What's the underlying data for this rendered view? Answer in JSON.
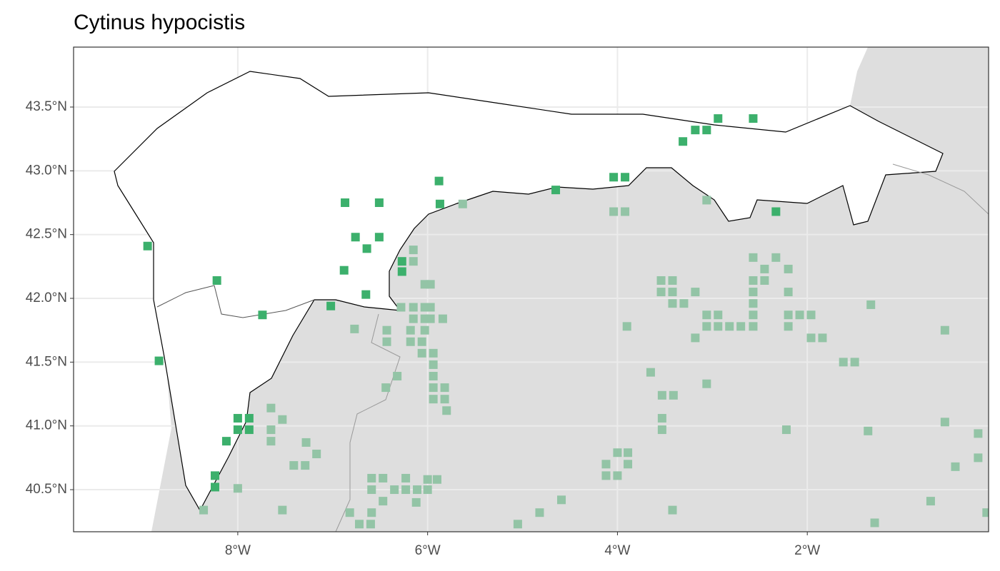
{
  "chart_data": {
    "type": "scatter",
    "title": "Cytinus hypocistis",
    "xlim": [
      -9.73,
      -0.09
    ],
    "ylim": [
      40.17,
      43.97
    ],
    "xticks": [
      {
        "value": -8,
        "label": "8°W"
      },
      {
        "value": -6,
        "label": "6°W"
      },
      {
        "value": -4,
        "label": "4°W"
      },
      {
        "value": -2,
        "label": "2°W"
      }
    ],
    "yticks": [
      {
        "value": 40.5,
        "label": "40.5°N"
      },
      {
        "value": 41.0,
        "label": "41.0°N"
      },
      {
        "value": 41.5,
        "label": "41.5°N"
      },
      {
        "value": 42.0,
        "label": "42.0°N"
      },
      {
        "value": 42.5,
        "label": "42.5°N"
      },
      {
        "value": 43.0,
        "label": "43.0°N"
      },
      {
        "value": 43.5,
        "label": "43.5°N"
      }
    ],
    "grid": true,
    "series": [
      {
        "color": "#3cb06c",
        "x": [
          -8.95,
          -8.22,
          -8.83,
          -7.74,
          -8.0,
          -7.88,
          -8.0,
          -7.88,
          -8.12,
          -8.24,
          -8.24,
          -7.02,
          -6.88,
          -6.87,
          -6.76,
          -6.64,
          -6.51,
          -6.51,
          -6.65,
          -6.27,
          -6.27,
          -5.88,
          -5.87,
          -4.65,
          -4.04,
          -3.92,
          -3.31,
          -3.18,
          -3.06,
          -2.94,
          -2.57,
          -2.33
        ],
        "values": [
          42.41,
          42.14,
          41.51,
          41.87,
          41.06,
          41.06,
          40.97,
          40.97,
          40.88,
          40.61,
          40.52,
          41.94,
          42.22,
          42.75,
          42.48,
          42.39,
          42.48,
          42.75,
          42.03,
          42.29,
          42.21,
          42.92,
          42.74,
          42.85,
          42.95,
          42.95,
          43.23,
          43.32,
          43.32,
          43.41,
          43.41,
          42.68
        ]
      },
      {
        "color": "#93c4a6",
        "x": [
          -5.63,
          -4.04,
          -3.92,
          -3.06,
          -6.15,
          -6.15,
          -6.03,
          -5.97,
          -6.28,
          -6.15,
          -6.03,
          -5.97,
          -6.15,
          -6.03,
          -5.97,
          -5.84,
          -6.18,
          -6.03,
          -6.18,
          -6.06,
          -6.06,
          -5.94,
          -5.94,
          -5.94,
          -5.94,
          -5.94,
          -5.82,
          -5.82,
          -5.8,
          -6.43,
          -6.43,
          -6.77,
          -6.32,
          -6.44,
          -7.65,
          -7.53,
          -7.65,
          -7.65,
          -7.28,
          -7.17,
          -7.41,
          -7.29,
          -8.0,
          -8.36,
          -7.53,
          -6.82,
          -6.72,
          -6.6,
          -6.59,
          -6.59,
          -6.47,
          -6.59,
          -6.47,
          -6.35,
          -6.23,
          -6.23,
          -6.11,
          -6.0,
          -6.0,
          -5.9,
          -6.12,
          -5.05,
          -4.82,
          -4.59,
          -4.12,
          -4.12,
          -4.0,
          -4.0,
          -3.89,
          -3.89,
          -3.65,
          -3.54,
          -3.42,
          -3.54,
          -3.42,
          -3.42,
          -3.3,
          -3.18,
          -3.9,
          -3.18,
          -3.06,
          -2.94,
          -3.06,
          -2.94,
          -2.82,
          -2.7,
          -2.57,
          -2.57,
          -2.33,
          -2.45,
          -2.57,
          -2.45,
          -2.57,
          -2.57,
          -2.57,
          -2.2,
          -2.2,
          -2.2,
          -2.08,
          -1.96,
          -2.2,
          -1.96,
          -1.84,
          -1.62,
          -1.5,
          -1.33,
          -3.53,
          -3.41,
          -3.53,
          -3.53,
          -3.06,
          -2.22,
          -1.36,
          -0.55,
          -0.55,
          -0.2,
          -0.44,
          -0.2,
          -0.7,
          -1.29,
          -0.11,
          -3.42
        ],
        "values": [
          42.74,
          42.68,
          42.68,
          42.77,
          42.38,
          42.29,
          42.11,
          42.11,
          41.93,
          41.93,
          41.93,
          41.93,
          41.84,
          41.84,
          41.84,
          41.84,
          41.75,
          41.75,
          41.66,
          41.66,
          41.57,
          41.57,
          41.48,
          41.39,
          41.3,
          41.21,
          41.3,
          41.21,
          41.12,
          41.75,
          41.66,
          41.76,
          41.39,
          41.3,
          41.14,
          41.05,
          40.97,
          40.88,
          40.87,
          40.78,
          40.69,
          40.69,
          40.51,
          40.34,
          40.34,
          40.32,
          40.23,
          40.23,
          40.32,
          40.59,
          40.59,
          40.5,
          40.41,
          40.5,
          40.59,
          40.5,
          40.5,
          40.5,
          40.58,
          40.58,
          40.4,
          40.23,
          40.32,
          40.42,
          40.7,
          40.61,
          40.79,
          40.61,
          40.79,
          40.7,
          41.42,
          42.14,
          42.14,
          42.05,
          42.05,
          41.96,
          41.96,
          42.05,
          41.78,
          41.69,
          41.87,
          41.87,
          41.78,
          41.78,
          41.78,
          41.78,
          41.78,
          42.32,
          42.32,
          42.23,
          42.14,
          42.14,
          42.05,
          41.96,
          41.87,
          42.23,
          42.05,
          41.87,
          41.87,
          41.87,
          41.78,
          41.69,
          41.69,
          41.5,
          41.5,
          41.95,
          41.24,
          41.24,
          41.06,
          40.97,
          41.33,
          40.97,
          40.96,
          41.75,
          41.03,
          40.94,
          40.68,
          40.75,
          40.41,
          40.24,
          40.32,
          40.34
        ]
      }
    ]
  }
}
